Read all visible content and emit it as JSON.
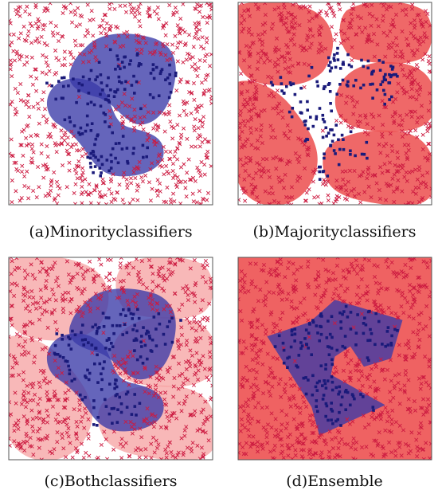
{
  "figure": {
    "panels": [
      {
        "id": "a",
        "caption": "(a)Minorityclassifiers",
        "mode": "minority"
      },
      {
        "id": "b",
        "caption": "(b)Majorityclassifiers",
        "mode": "majority"
      },
      {
        "id": "c",
        "caption": "(c)Bothclassifiers",
        "mode": "both"
      },
      {
        "id": "d",
        "caption": "(d)Ensemble",
        "mode": "ensemble"
      }
    ],
    "colors": {
      "majority_marker": "#cc1a40",
      "minority_marker": "#1a1a7a",
      "minority_region": "#3a3aa8",
      "majority_region": "#ec4d4d",
      "majority_region_light": "#f6a0a0",
      "ensemble_background": "#ef6262",
      "frame": "#555555"
    },
    "markers": {
      "majority": "cross",
      "minority": "square"
    }
  }
}
